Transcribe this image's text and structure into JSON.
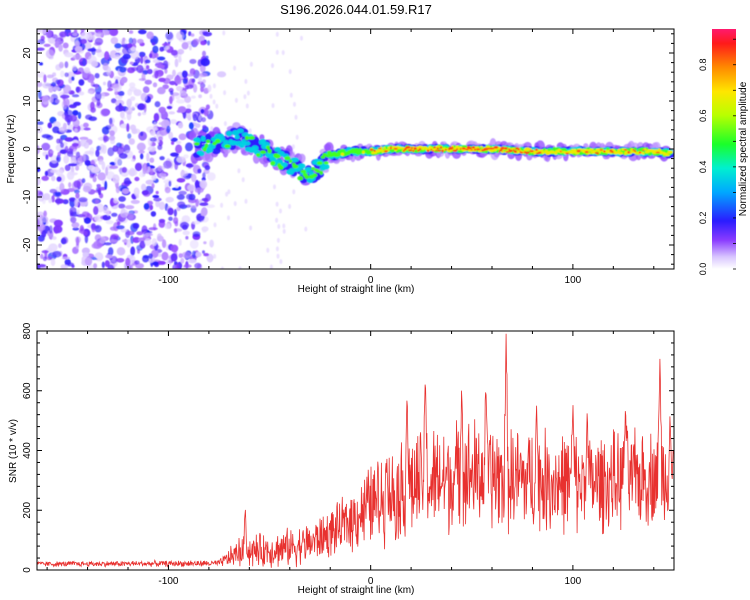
{
  "figure": {
    "title": "S196.2026.044.01.59.R17"
  },
  "chart_data": [
    {
      "type": "heatmap",
      "title": "S196.2026.044.01.59.R17",
      "xlabel": "Height of straight line (km)",
      "ylabel": "Frequency (Hz)",
      "xlim": [
        -165,
        150
      ],
      "ylim": [
        -25,
        25
      ],
      "xticks": [
        -100,
        0,
        100
      ],
      "yticks": [
        -20,
        -10,
        0,
        10,
        20
      ],
      "colorbar": {
        "label": "Normalized spectral amplitude",
        "range": [
          0,
          0.94
        ],
        "ticks": [
          0.0,
          0.2,
          0.4,
          0.6,
          0.8
        ]
      },
      "ridge": [
        {
          "x": -85,
          "freq": 0.5
        },
        {
          "x": -65,
          "freq": 2.5
        },
        {
          "x": -45,
          "freq": -2.0
        },
        {
          "x": -30,
          "freq": -5.5
        },
        {
          "x": -20,
          "freq": -1.5
        },
        {
          "x": -10,
          "freq": -0.5
        },
        {
          "x": 0,
          "freq": -0.5
        },
        {
          "x": 10,
          "freq": 0.0
        },
        {
          "x": 20,
          "freq": 0.0
        },
        {
          "x": 40,
          "freq": 0.0
        },
        {
          "x": 60,
          "freq": 0.0
        },
        {
          "x": 80,
          "freq": -0.5
        },
        {
          "x": 100,
          "freq": -0.5
        },
        {
          "x": 120,
          "freq": -0.5
        },
        {
          "x": 140,
          "freq": -0.5
        },
        {
          "x": 150,
          "freq": -1.0
        }
      ],
      "noise_region": [
        -165,
        -80
      ]
    },
    {
      "type": "line",
      "xlabel": "Height of straight line (km)",
      "ylabel": "SNR (10 * v/v)",
      "xlim": [
        -165,
        150
      ],
      "ylim": [
        0,
        800
      ],
      "xticks": [
        -100,
        0,
        100
      ],
      "yticks": [
        0,
        200,
        400,
        600,
        800
      ],
      "color": "#e8312f",
      "series": [
        {
          "name": "SNR",
          "envelope": [
            {
              "x": -165,
              "base": 20,
              "amp": 10
            },
            {
              "x": -75,
              "base": 22,
              "amp": 12
            },
            {
              "x": -65,
              "base": 60,
              "amp": 60
            },
            {
              "x": -45,
              "base": 70,
              "amp": 70
            },
            {
              "x": -30,
              "base": 90,
              "amp": 80
            },
            {
              "x": -15,
              "base": 140,
              "amp": 100
            },
            {
              "x": 0,
              "base": 220,
              "amp": 160
            },
            {
              "x": 20,
              "base": 280,
              "amp": 200
            },
            {
              "x": 50,
              "base": 320,
              "amp": 220
            },
            {
              "x": 80,
              "base": 300,
              "amp": 200
            },
            {
              "x": 110,
              "base": 290,
              "amp": 190
            },
            {
              "x": 150,
              "base": 320,
              "amp": 180
            }
          ],
          "peaks": [
            {
              "x": -62,
              "y": 210
            },
            {
              "x": 8,
              "y": 380
            },
            {
              "x": 18,
              "y": 600
            },
            {
              "x": 27,
              "y": 660
            },
            {
              "x": 45,
              "y": 640
            },
            {
              "x": 57,
              "y": 620
            },
            {
              "x": 67,
              "y": 800
            },
            {
              "x": 82,
              "y": 560
            },
            {
              "x": 100,
              "y": 560
            },
            {
              "x": 107,
              "y": 530
            },
            {
              "x": 126,
              "y": 560
            },
            {
              "x": 143,
              "y": 720
            },
            {
              "x": 148,
              "y": 520
            }
          ]
        }
      ]
    }
  ]
}
